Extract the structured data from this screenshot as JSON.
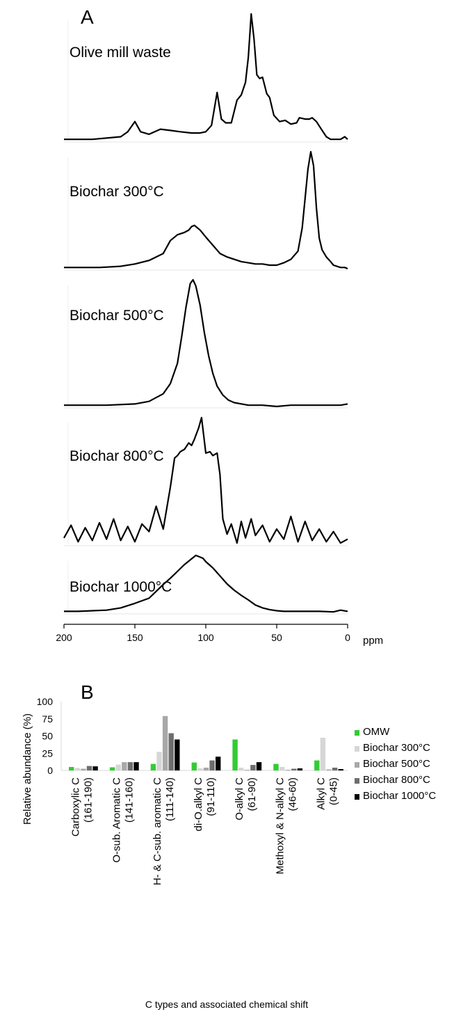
{
  "panel_a": {
    "letter": "A",
    "x_unit": "ppm",
    "x_ticks": [
      "200",
      "150",
      "100",
      "50",
      "0"
    ]
  },
  "panel_b": {
    "letter": "B"
  },
  "chart_data": [
    {
      "type": "line",
      "panel": "A",
      "xlabel": "ppm",
      "xlim": [
        200,
        0
      ],
      "x_reversed": true,
      "xticks": [
        200,
        150,
        100,
        50,
        0
      ],
      "grid": false,
      "series": [
        {
          "name": "Olive mill waste",
          "normalized": true,
          "x": [
            200,
            180,
            160,
            155,
            150,
            146,
            140,
            132,
            125,
            118,
            110,
            104,
            100,
            96,
            92,
            89,
            86,
            82,
            78,
            75,
            72,
            70,
            68,
            66,
            64,
            62,
            60,
            57,
            55,
            52,
            48,
            44,
            40,
            36,
            34,
            30,
            27,
            25,
            22,
            18,
            15,
            12,
            10,
            5,
            2,
            0
          ],
          "y": [
            0.01,
            0.01,
            0.03,
            0.07,
            0.15,
            0.07,
            0.05,
            0.09,
            0.08,
            0.07,
            0.06,
            0.06,
            0.07,
            0.12,
            0.38,
            0.17,
            0.14,
            0.14,
            0.32,
            0.36,
            0.46,
            0.66,
            1.0,
            0.8,
            0.52,
            0.49,
            0.5,
            0.37,
            0.34,
            0.2,
            0.15,
            0.16,
            0.13,
            0.14,
            0.18,
            0.17,
            0.17,
            0.18,
            0.15,
            0.08,
            0.03,
            0.01,
            0.01,
            0.01,
            0.03,
            0.01
          ]
        },
        {
          "name": "Biochar 300°C",
          "normalized": true,
          "x": [
            200,
            175,
            160,
            150,
            140,
            130,
            125,
            120,
            115,
            112,
            110,
            108,
            104,
            100,
            95,
            90,
            85,
            80,
            75,
            70,
            65,
            60,
            55,
            50,
            45,
            40,
            35,
            32,
            30,
            28,
            26,
            24,
            22,
            20,
            18,
            15,
            12,
            10,
            5,
            2,
            0
          ],
          "y": [
            0.01,
            0.01,
            0.02,
            0.04,
            0.07,
            0.13,
            0.24,
            0.29,
            0.31,
            0.33,
            0.36,
            0.37,
            0.33,
            0.27,
            0.2,
            0.13,
            0.1,
            0.08,
            0.06,
            0.05,
            0.04,
            0.04,
            0.03,
            0.03,
            0.05,
            0.08,
            0.15,
            0.35,
            0.6,
            0.85,
            1.0,
            0.88,
            0.52,
            0.26,
            0.16,
            0.1,
            0.06,
            0.03,
            0.01,
            0.01,
            0.0
          ]
        },
        {
          "name": "Biochar 500°C",
          "normalized": true,
          "x": [
            200,
            170,
            150,
            140,
            130,
            125,
            120,
            117,
            114,
            111,
            109,
            107,
            104,
            101,
            98,
            95,
            92,
            88,
            84,
            80,
            70,
            60,
            50,
            40,
            20,
            5,
            0
          ],
          "y": [
            0.01,
            0.01,
            0.02,
            0.04,
            0.1,
            0.18,
            0.34,
            0.55,
            0.78,
            0.97,
            1.0,
            0.95,
            0.8,
            0.58,
            0.4,
            0.26,
            0.16,
            0.09,
            0.05,
            0.03,
            0.01,
            0.01,
            0.0,
            0.01,
            0.01,
            0.01,
            0.02
          ]
        },
        {
          "name": "Biochar 800°C",
          "normalized": true,
          "x": [
            200,
            195,
            190,
            185,
            180,
            175,
            170,
            165,
            160,
            155,
            150,
            145,
            140,
            135,
            130,
            125,
            122,
            120,
            118,
            115,
            112,
            110,
            108,
            105,
            103,
            100,
            97,
            95,
            92,
            90,
            88,
            85,
            82,
            78,
            75,
            72,
            68,
            65,
            60,
            55,
            50,
            45,
            40,
            35,
            30,
            25,
            20,
            15,
            10,
            5,
            0
          ],
          "y": [
            0.05,
            0.15,
            0.02,
            0.13,
            0.03,
            0.17,
            0.04,
            0.2,
            0.03,
            0.14,
            0.02,
            0.16,
            0.1,
            0.3,
            0.12,
            0.45,
            0.68,
            0.7,
            0.73,
            0.75,
            0.8,
            0.78,
            0.83,
            0.92,
            1.0,
            0.72,
            0.73,
            0.7,
            0.72,
            0.55,
            0.2,
            0.08,
            0.16,
            0.01,
            0.18,
            0.05,
            0.2,
            0.07,
            0.15,
            0.02,
            0.12,
            0.04,
            0.22,
            0.02,
            0.18,
            0.03,
            0.12,
            0.02,
            0.1,
            0.01,
            0.04
          ]
        },
        {
          "name": "Biochar 1000°C",
          "normalized": true,
          "x": [
            200,
            190,
            180,
            170,
            160,
            150,
            140,
            135,
            130,
            125,
            120,
            115,
            110,
            107,
            105,
            102,
            100,
            95,
            90,
            85,
            80,
            75,
            70,
            65,
            60,
            55,
            50,
            45,
            40,
            30,
            20,
            10,
            5,
            0
          ],
          "y": [
            0.02,
            0.02,
            0.03,
            0.04,
            0.08,
            0.16,
            0.25,
            0.37,
            0.49,
            0.6,
            0.72,
            0.84,
            0.94,
            1.0,
            0.98,
            0.95,
            0.89,
            0.78,
            0.64,
            0.5,
            0.39,
            0.3,
            0.22,
            0.13,
            0.08,
            0.05,
            0.03,
            0.02,
            0.02,
            0.02,
            0.02,
            0.01,
            0.04,
            0.02
          ]
        }
      ]
    },
    {
      "type": "bar",
      "panel": "B",
      "title": "",
      "xlabel": "C types and associated chemical shift",
      "ylabel": "Relative abundance (%)",
      "ylim": [
        0,
        100
      ],
      "yticks": [
        0,
        25,
        50,
        75,
        100
      ],
      "grid": false,
      "legend_position": "right",
      "categories": [
        [
          "Carboxylic C",
          "(161-190)"
        ],
        [
          "O-sub. Aromatic C",
          "(141-160)"
        ],
        [
          "H- & C-sub. aromatic C",
          "(111-140)"
        ],
        [
          "di-O.alkyl C",
          "(91-110)"
        ],
        [
          "O-alkyl C",
          "(61-90)"
        ],
        [
          "Methoxyl & N-alkyl C",
          "(46-60)"
        ],
        [
          "Alkyl C",
          "(0-45)"
        ]
      ],
      "series": [
        {
          "name": "OMW",
          "color": "#33cc33",
          "values": [
            5,
            4.5,
            9.5,
            11.5,
            45,
            9.5,
            14.5
          ]
        },
        {
          "name": "Biochar 300°C",
          "color": "#d6d6d6",
          "values": [
            3.5,
            8.5,
            27,
            3,
            4,
            5,
            47.5
          ]
        },
        {
          "name": "Biochar 500°C",
          "color": "#a8a8a8",
          "values": [
            2.5,
            12,
            79,
            4,
            1,
            1,
            1.5
          ]
        },
        {
          "name": "Biochar 800°C",
          "color": "#6e6e6e",
          "values": [
            6.5,
            12,
            54,
            14.5,
            8,
            2.5,
            4
          ]
        },
        {
          "name": "Biochar 1000°C",
          "color": "#000000",
          "values": [
            6,
            12,
            45,
            20,
            12,
            3,
            2
          ]
        }
      ]
    }
  ]
}
